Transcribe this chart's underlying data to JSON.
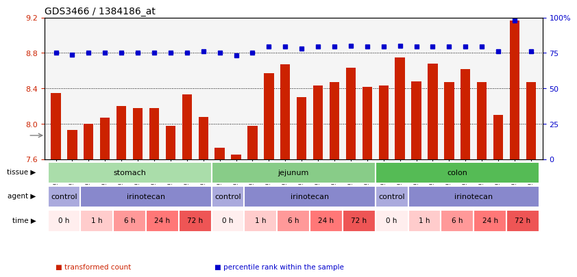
{
  "title": "GDS3466 / 1384186_at",
  "samples": [
    "GSM297524",
    "GSM297525",
    "GSM297526",
    "GSM297527",
    "GSM297528",
    "GSM297529",
    "GSM297530",
    "GSM297531",
    "GSM297532",
    "GSM297533",
    "GSM297534",
    "GSM297535",
    "GSM297536",
    "GSM297537",
    "GSM297538",
    "GSM297539",
    "GSM297540",
    "GSM297541",
    "GSM297542",
    "GSM297543",
    "GSM297544",
    "GSM297545",
    "GSM297546",
    "GSM297547",
    "GSM297548",
    "GSM297549",
    "GSM297550",
    "GSM297551",
    "GSM297552",
    "GSM297553"
  ],
  "bar_values": [
    8.35,
    7.93,
    8.0,
    8.07,
    8.2,
    8.18,
    8.18,
    7.98,
    8.33,
    8.08,
    7.73,
    7.65,
    7.98,
    8.57,
    8.67,
    8.3,
    8.43,
    8.47,
    8.63,
    8.42,
    8.43,
    8.75,
    8.48,
    8.68,
    8.47,
    8.62,
    8.47,
    8.1,
    9.17,
    8.47
  ],
  "dot_values": [
    8.8,
    8.78,
    8.8,
    8.8,
    8.8,
    8.8,
    8.8,
    8.8,
    8.8,
    8.82,
    8.8,
    8.77,
    8.8,
    8.87,
    8.87,
    8.85,
    8.87,
    8.87,
    8.88,
    8.87,
    8.87,
    8.88,
    8.87,
    8.87,
    8.87,
    8.87,
    8.87,
    8.82,
    9.17,
    8.82
  ],
  "bar_color": "#cc2200",
  "dot_color": "#0000cc",
  "ylim_left": [
    7.6,
    9.2
  ],
  "ylim_right": [
    0,
    100
  ],
  "yticks_left": [
    7.6,
    8.0,
    8.4,
    8.8,
    9.2
  ],
  "yticks_right": [
    0,
    25,
    50,
    75,
    100
  ],
  "grid_lines": [
    8.0,
    8.4,
    8.8
  ],
  "tissue_groups": [
    {
      "label": "stomach",
      "start": 0,
      "end": 10,
      "color": "#aaddaa"
    },
    {
      "label": "jejunum",
      "start": 10,
      "end": 20,
      "color": "#88cc88"
    },
    {
      "label": "colon",
      "start": 20,
      "end": 30,
      "color": "#55bb55"
    }
  ],
  "agent_groups": [
    {
      "label": "control",
      "start": 0,
      "end": 2,
      "color": "#aaaadd"
    },
    {
      "label": "irinotecan",
      "start": 2,
      "end": 10,
      "color": "#8888cc"
    },
    {
      "label": "control",
      "start": 10,
      "end": 12,
      "color": "#aaaadd"
    },
    {
      "label": "irinotecan",
      "start": 12,
      "end": 20,
      "color": "#8888cc"
    },
    {
      "label": "control",
      "start": 20,
      "end": 22,
      "color": "#aaaadd"
    },
    {
      "label": "irinotecan",
      "start": 22,
      "end": 30,
      "color": "#8888cc"
    }
  ],
  "time_groups": [
    {
      "label": "0 h",
      "start": 0,
      "end": 2,
      "color": "#ffeeee"
    },
    {
      "label": "1 h",
      "start": 2,
      "end": 4,
      "color": "#ffcccc"
    },
    {
      "label": "6 h",
      "start": 4,
      "end": 6,
      "color": "#ff9999"
    },
    {
      "label": "24 h",
      "start": 6,
      "end": 8,
      "color": "#ff7777"
    },
    {
      "label": "72 h",
      "start": 8,
      "end": 10,
      "color": "#ee5555"
    },
    {
      "label": "0 h",
      "start": 10,
      "end": 12,
      "color": "#ffeeee"
    },
    {
      "label": "1 h",
      "start": 12,
      "end": 14,
      "color": "#ffcccc"
    },
    {
      "label": "6 h",
      "start": 14,
      "end": 16,
      "color": "#ff9999"
    },
    {
      "label": "24 h",
      "start": 16,
      "end": 18,
      "color": "#ff7777"
    },
    {
      "label": "72 h",
      "start": 18,
      "end": 20,
      "color": "#ee5555"
    },
    {
      "label": "0 h",
      "start": 20,
      "end": 22,
      "color": "#ffeeee"
    },
    {
      "label": "1 h",
      "start": 22,
      "end": 24,
      "color": "#ffcccc"
    },
    {
      "label": "6 h",
      "start": 24,
      "end": 26,
      "color": "#ff9999"
    },
    {
      "label": "24 h",
      "start": 26,
      "end": 28,
      "color": "#ff7777"
    },
    {
      "label": "72 h",
      "start": 28,
      "end": 30,
      "color": "#ee5555"
    }
  ],
  "row_labels": [
    "tissue",
    "agent",
    "time"
  ],
  "legend_items": [
    {
      "label": "transformed count",
      "color": "#cc2200",
      "marker": "s"
    },
    {
      "label": "percentile rank within the sample",
      "color": "#0000cc",
      "marker": "s"
    }
  ],
  "background_color": "#f5f5f5"
}
